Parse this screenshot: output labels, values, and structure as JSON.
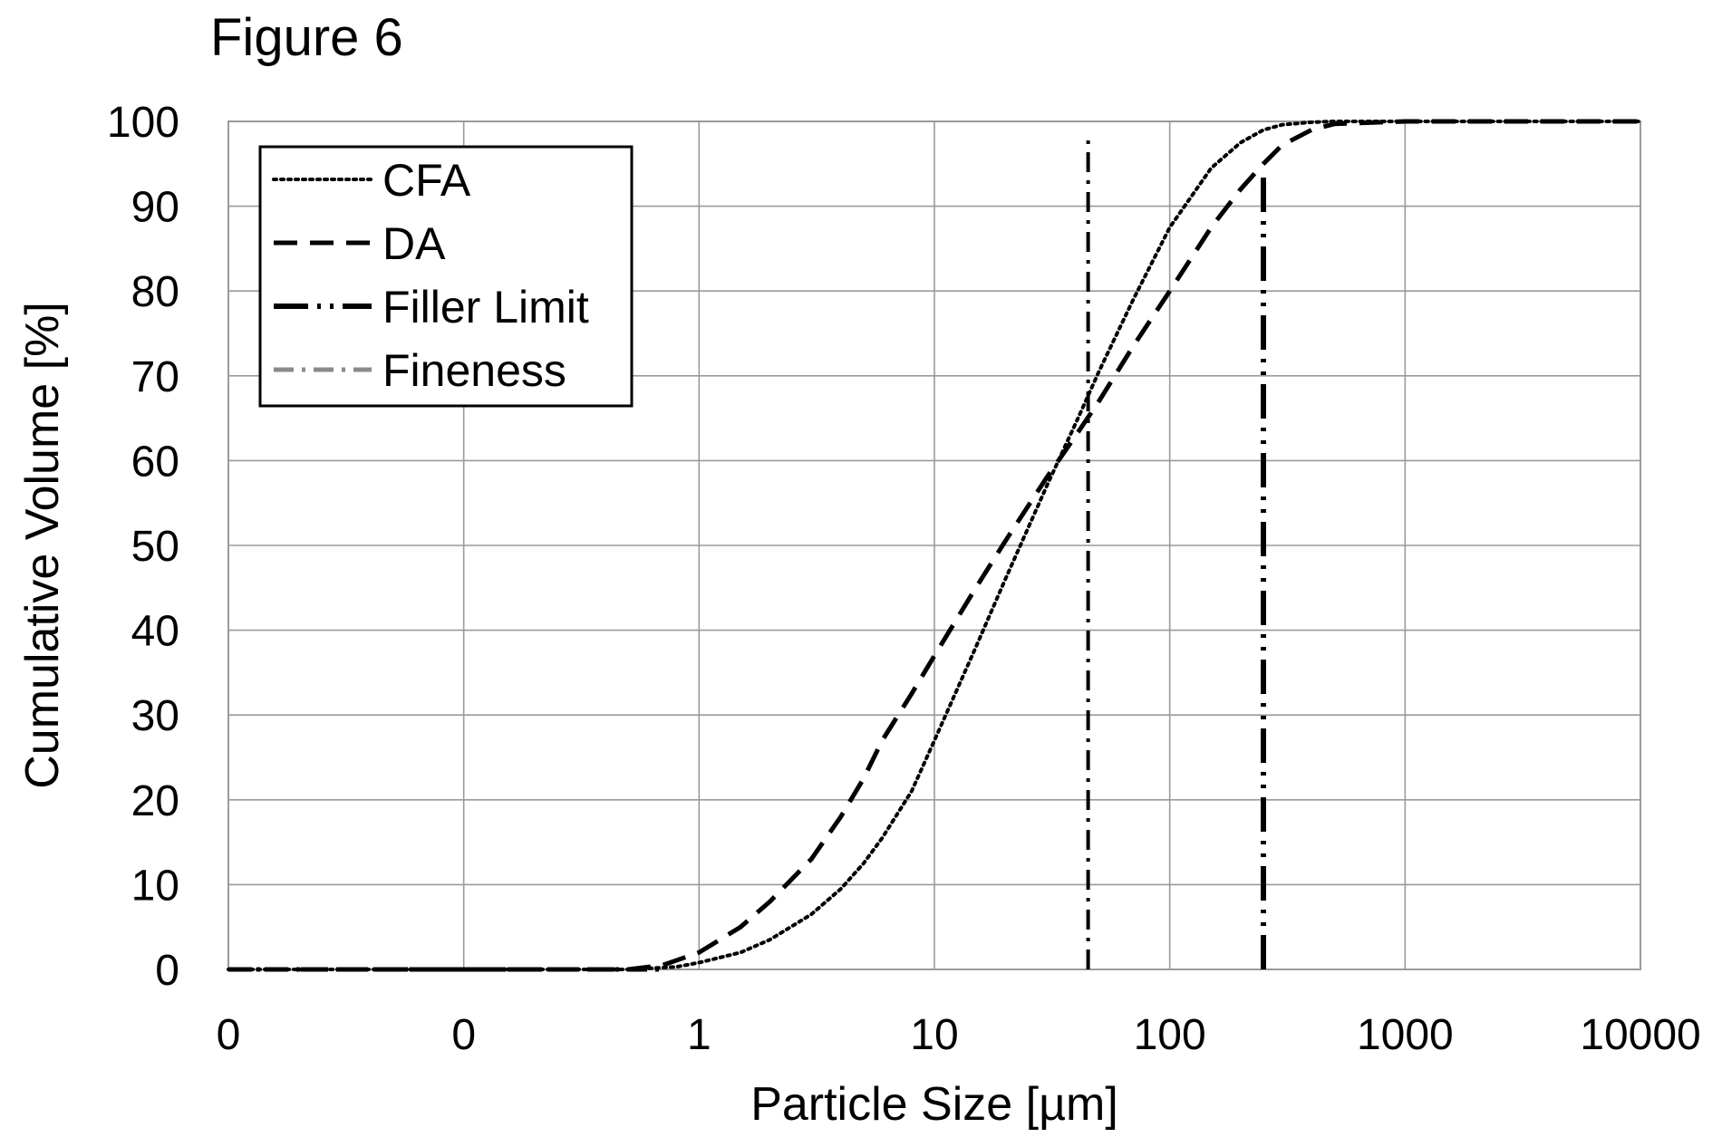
{
  "figure_title": "Figure 6",
  "chart_data": {
    "type": "line",
    "title": "Figure 6",
    "xlabel": "Particle Size [µm]",
    "ylabel": "Cumulative Volume [%]",
    "x_scale": "log",
    "xlim": [
      0.01,
      10000
    ],
    "ylim": [
      0,
      100
    ],
    "x_ticks": [
      0.01,
      0.1,
      1,
      10,
      100,
      1000,
      10000
    ],
    "x_tick_labels": [
      "0",
      "0",
      "1",
      "10",
      "100",
      "1000",
      "10000"
    ],
    "y_ticks": [
      0,
      10,
      20,
      30,
      40,
      50,
      60,
      70,
      80,
      90,
      100
    ],
    "y_tick_labels": [
      "0",
      "10",
      "20",
      "30",
      "40",
      "50",
      "60",
      "70",
      "80",
      "90",
      "100"
    ],
    "grid": true,
    "legend_position": "top-left",
    "series": [
      {
        "name": "CFA",
        "style": "dotted",
        "color": "#000000",
        "x": [
          0.01,
          0.1,
          0.5,
          0.8,
          1,
          1.5,
          2,
          3,
          4,
          5,
          6,
          8,
          10,
          15,
          20,
          30,
          40,
          50,
          70,
          100,
          150,
          200,
          250,
          300,
          400,
          500,
          1000,
          10000
        ],
        "y": [
          0,
          0,
          0,
          0.3,
          0.8,
          2,
          3.5,
          6.5,
          9.5,
          12.5,
          15.5,
          21,
          27,
          38,
          46,
          57,
          64.5,
          70.5,
          79,
          87.5,
          94.5,
          97.5,
          99,
          99.6,
          99.9,
          100,
          100,
          100
        ]
      },
      {
        "name": "DA",
        "style": "dashed",
        "color": "#000000",
        "x": [
          0.01,
          0.1,
          0.5,
          0.7,
          1,
          1.5,
          2,
          3,
          4,
          5,
          6,
          8,
          10,
          15,
          20,
          30,
          40,
          50,
          70,
          100,
          150,
          200,
          250,
          300,
          400,
          500,
          1000,
          10000
        ],
        "y": [
          0,
          0,
          0,
          0.5,
          2,
          5,
          8,
          13,
          18,
          22.5,
          27,
          32.5,
          37,
          45,
          50.5,
          58,
          63,
          67,
          73.5,
          80,
          87.5,
          92,
          95,
          97.2,
          99,
          99.7,
          100,
          100
        ]
      },
      {
        "name": "Filler Limit",
        "style": "long-dash-dot-dot",
        "color": "#000000",
        "x": [
          250,
          250
        ],
        "y": [
          0,
          94
        ]
      },
      {
        "name": "Fineness",
        "style": "dash-dot",
        "color": "#000000",
        "x": [
          45,
          45
        ],
        "y": [
          0,
          98
        ]
      }
    ],
    "baseline_series_note_hidden": ""
  }
}
